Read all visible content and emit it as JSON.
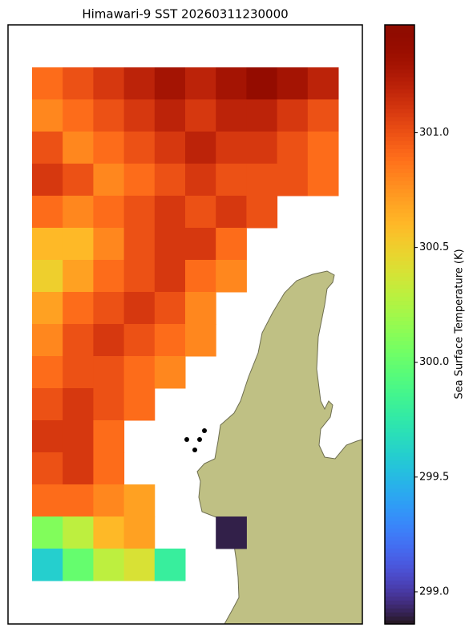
{
  "chart_data": {
    "type": "heatmap",
    "title": "Himawari-9 SST 20260311230000",
    "colorbar_label": "Sea Surface Temperature (K)",
    "colormap": "turbo",
    "clim": [
      298.86,
      301.47
    ],
    "cticks": [
      {
        "value": 299,
        "label": "299.0"
      },
      299.5,
      {
        "value": 300,
        "label": "300.0"
      },
      300.5,
      {
        "value": 301,
        "label": "301.0"
      }
    ],
    "grid_values": [
      [
        300.9,
        301.0,
        301.1,
        301.2,
        301.3,
        301.2,
        301.3,
        301.4,
        301.3,
        301.2
      ],
      [
        300.8,
        300.9,
        301.0,
        301.1,
        301.2,
        301.1,
        301.2,
        301.2,
        301.1,
        301.0
      ],
      [
        301.0,
        300.8,
        300.9,
        301.0,
        301.1,
        301.2,
        301.1,
        301.1,
        301.0,
        300.9
      ],
      [
        301.1,
        301.0,
        300.8,
        300.9,
        301.0,
        301.1,
        301.0,
        301.0,
        301.0,
        300.9
      ],
      [
        300.9,
        300.8,
        300.9,
        301.0,
        301.1,
        301.0,
        301.1,
        301.0,
        null,
        null
      ],
      [
        300.6,
        300.6,
        300.8,
        301.0,
        301.1,
        301.1,
        300.9,
        null,
        null,
        null
      ],
      [
        300.5,
        300.7,
        300.9,
        301.0,
        301.1,
        300.9,
        300.8,
        null,
        null,
        null
      ],
      [
        300.7,
        300.9,
        301.0,
        301.1,
        301.0,
        300.8,
        null,
        null,
        null,
        null
      ],
      [
        300.8,
        301.0,
        301.1,
        301.0,
        300.9,
        300.8,
        null,
        null,
        null,
        null
      ],
      [
        300.9,
        301.0,
        301.0,
        300.9,
        300.8,
        null,
        null,
        null,
        null,
        null
      ],
      [
        301.0,
        301.1,
        301.0,
        300.9,
        null,
        null,
        null,
        null,
        null,
        null
      ],
      [
        301.1,
        301.1,
        300.9,
        null,
        null,
        null,
        null,
        null,
        null,
        null
      ],
      [
        301.0,
        301.1,
        300.9,
        null,
        null,
        null,
        null,
        null,
        null,
        null
      ],
      [
        300.9,
        300.9,
        300.8,
        300.7,
        null,
        null,
        null,
        null,
        null,
        null
      ],
      [
        300.1,
        300.3,
        300.6,
        300.7,
        null,
        null,
        298.9,
        null,
        null,
        null
      ],
      [
        299.6,
        300.0,
        300.3,
        300.4,
        299.8,
        null,
        null,
        null,
        null,
        null
      ]
    ]
  }
}
